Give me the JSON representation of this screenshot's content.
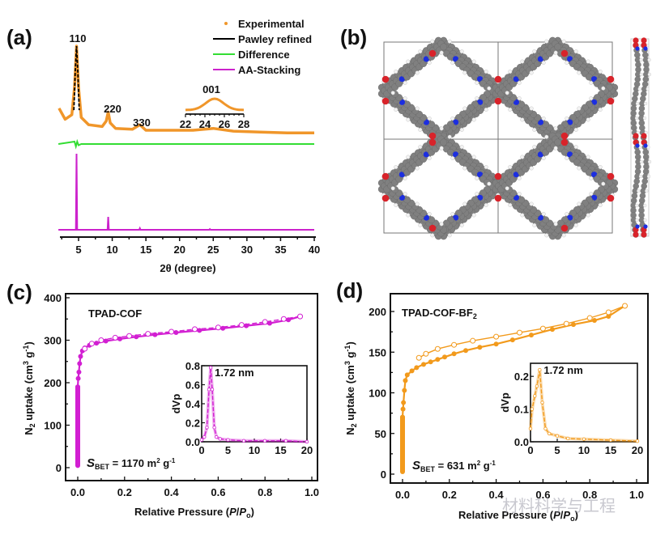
{
  "panels": {
    "a": {
      "label": "(a)"
    },
    "b": {
      "label": "(b)"
    },
    "c": {
      "label": "(c)"
    },
    "d": {
      "label": "(d)"
    }
  },
  "colors": {
    "experimental": "#f0962a",
    "pawley": "#000000",
    "difference": "#33dd33",
    "aa_stacking": "#cc22cc",
    "tpad_cof": "#d21fd2",
    "tpad_cof_bf2": "#f29a1c",
    "carbon": "#808080",
    "nitrogen": "#1c2ee0",
    "oxygen": "#d8232a",
    "hydrogen": "#f2f2f2"
  },
  "chart_data": [
    {
      "id": "a",
      "type": "line",
      "title": "",
      "xlabel": "2θ (degree)",
      "ylabel": "",
      "xlim": [
        2,
        40
      ],
      "xticks": [
        5,
        10,
        15,
        20,
        25,
        30,
        35,
        40
      ],
      "legend": {
        "placement": "top-right",
        "entries": [
          {
            "name": "Experimental",
            "style": "dot"
          },
          {
            "name": "Pawley refined",
            "style": "line"
          },
          {
            "name": "Difference",
            "style": "line"
          },
          {
            "name": "AA-Stacking",
            "style": "line"
          }
        ]
      },
      "peak_annotations": [
        {
          "label": "110",
          "x": 4.7
        },
        {
          "label": "220",
          "x": 9.4
        },
        {
          "label": "330",
          "x": 14.1
        },
        {
          "label": "001",
          "x": 25.0
        }
      ],
      "inset": {
        "xlim": [
          22,
          28
        ],
        "xticks": [
          22,
          24,
          26,
          28
        ],
        "peak_center": 25.0
      },
      "series": [
        {
          "name": "Experimental",
          "x": [
            2.1,
            3.0,
            4.0,
            4.4,
            4.7,
            5.0,
            5.4,
            6.5,
            8.5,
            9.1,
            9.4,
            9.7,
            10.5,
            13.0,
            14.1,
            15.0,
            18,
            22,
            25,
            28,
            32,
            36,
            40
          ],
          "values": [
            0.32,
            0.2,
            0.25,
            0.55,
            1.0,
            0.55,
            0.22,
            0.14,
            0.12,
            0.18,
            0.28,
            0.16,
            0.1,
            0.09,
            0.14,
            0.08,
            0.08,
            0.08,
            0.1,
            0.07,
            0.06,
            0.05,
            0.05
          ]
        },
        {
          "name": "Pawley refined",
          "x": [
            4.3,
            4.5,
            4.7,
            4.9,
            5.1
          ],
          "values": [
            0.3,
            0.7,
            1.0,
            0.7,
            0.3
          ]
        },
        {
          "name": "Difference",
          "x": [
            2,
            4.4,
            4.6,
            4.8,
            5.0,
            5.4,
            40
          ],
          "values": [
            0,
            0.02,
            -0.02,
            0.02,
            -0.01,
            0,
            0
          ]
        },
        {
          "name": "AA-Stacking",
          "x": [
            2,
            4.6,
            4.7,
            4.8,
            9.3,
            9.4,
            9.5,
            14.0,
            14.1,
            14.2,
            24.4,
            24.5,
            24.6,
            40
          ],
          "values": [
            0,
            0,
            1.0,
            0,
            0,
            0.17,
            0,
            0,
            0.02,
            0,
            0,
            0.01,
            0,
            0
          ]
        }
      ]
    },
    {
      "id": "c",
      "type": "line",
      "title": "TPAD-COF",
      "annotation": "S_BET = 1170 m² g⁻¹",
      "annotation_main": "S",
      "annotation_sub": "BET",
      "annotation_rest": " = 1170 m",
      "annotation_sup": "2",
      "annotation_tail": " g",
      "annotation_tail_sup": "-1",
      "xlabel": "Relative Pressure (P/P0)",
      "ylabel": "N2 uptake (cm3 g-1)",
      "xlim": [
        0,
        1.0
      ],
      "ylim": [
        0,
        400
      ],
      "xticks": [
        "0.0",
        "0.2",
        "0.4",
        "0.6",
        "0.8",
        "1.0"
      ],
      "yticks": [
        "0",
        "100",
        "200",
        "300",
        "400"
      ],
      "series": [
        {
          "name": "adsorption",
          "marker": "filled",
          "x": [
            0.0,
            0.0,
            0.0,
            0.002,
            0.005,
            0.008,
            0.012,
            0.02,
            0.03,
            0.05,
            0.08,
            0.12,
            0.18,
            0.25,
            0.33,
            0.42,
            0.52,
            0.62,
            0.72,
            0.82,
            0.9,
            0.95
          ],
          "values": [
            5,
            100,
            190,
            210,
            225,
            245,
            262,
            275,
            282,
            288,
            293,
            298,
            303,
            308,
            313,
            318,
            323,
            328,
            334,
            340,
            348,
            356
          ]
        },
        {
          "name": "desorption",
          "marker": "open",
          "x": [
            0.95,
            0.88,
            0.8,
            0.7,
            0.6,
            0.5,
            0.4,
            0.3,
            0.22,
            0.16,
            0.1,
            0.06,
            0.03
          ],
          "values": [
            356,
            350,
            343,
            336,
            330,
            326,
            320,
            315,
            310,
            306,
            300,
            292,
            280
          ]
        }
      ],
      "inset": {
        "title": "1.72 nm",
        "ylabel": "dVp",
        "xlim": [
          0,
          20
        ],
        "ylim": [
          0,
          0.8
        ],
        "xticks": [
          "0",
          "5",
          "10",
          "15",
          "20"
        ],
        "yticks": [
          "0.0",
          "0.2",
          "0.4",
          "0.6",
          "0.8"
        ],
        "x": [
          0,
          0.5,
          1.0,
          1.4,
          1.72,
          2.0,
          2.4,
          2.8,
          3.5,
          5,
          8,
          12,
          16,
          20
        ],
        "values": [
          0.02,
          0.05,
          0.15,
          0.55,
          0.78,
          0.55,
          0.15,
          0.05,
          0.03,
          0.02,
          0.01,
          0.01,
          0.01,
          0.0
        ]
      }
    },
    {
      "id": "d",
      "type": "line",
      "title": "TPAD-COF-BF2",
      "annotation": "S_BET = 631 m² g⁻¹",
      "annotation_main": "S",
      "annotation_sub": "BET",
      "annotation_rest": " = 631 m",
      "annotation_sup": "2",
      "annotation_tail": " g",
      "annotation_tail_sup": "-1",
      "xlabel": "Relative Pressure (P/P0)",
      "ylabel": "N2 uptake (cm3 g-1)",
      "xlim": [
        0,
        1.0
      ],
      "ylim": [
        0,
        200
      ],
      "xticks": [
        "0.0",
        "0.2",
        "0.4",
        "0.6",
        "0.8",
        "1.0"
      ],
      "yticks": [
        "0",
        "50",
        "100",
        "150",
        "200"
      ],
      "series": [
        {
          "name": "adsorption",
          "marker": "filled",
          "x": [
            0.0,
            0.0,
            0.0,
            0.002,
            0.004,
            0.008,
            0.012,
            0.02,
            0.04,
            0.06,
            0.09,
            0.12,
            0.15,
            0.18,
            0.22,
            0.27,
            0.33,
            0.4,
            0.47,
            0.55,
            0.64,
            0.73,
            0.82,
            0.88,
            0.95
          ],
          "values": [
            3,
            40,
            70,
            80,
            88,
            103,
            115,
            122,
            127,
            131,
            135,
            138,
            141,
            144,
            148,
            152,
            156,
            160,
            165,
            171,
            178,
            184,
            189,
            194,
            207
          ]
        },
        {
          "name": "desorption",
          "marker": "open",
          "x": [
            0.95,
            0.88,
            0.8,
            0.7,
            0.6,
            0.5,
            0.4,
            0.3,
            0.22,
            0.15,
            0.1,
            0.07
          ],
          "values": [
            207,
            199,
            192,
            185,
            179,
            174,
            169,
            164,
            159,
            154,
            148,
            143
          ]
        }
      ],
      "inset": {
        "title": "1.72 nm",
        "ylabel": "dVp",
        "xlim": [
          0,
          20
        ],
        "ylim": [
          0,
          0.24
        ],
        "xticks": [
          "0",
          "5",
          "10",
          "15",
          "20"
        ],
        "yticks": [
          "0.0",
          "0.1",
          "0.2"
        ],
        "x": [
          0,
          0.3,
          0.8,
          1.2,
          1.72,
          2.2,
          2.8,
          3.5,
          5,
          7,
          10,
          15,
          20
        ],
        "values": [
          0.04,
          0.1,
          0.14,
          0.17,
          0.22,
          0.12,
          0.04,
          0.025,
          0.018,
          0.01,
          0.008,
          0.005,
          0.002
        ]
      }
    }
  ],
  "structure_b": {
    "description": "COF crystal structure, top view 2x2 unit cells and side view",
    "atom_types": [
      "carbon",
      "nitrogen",
      "oxygen",
      "hydrogen"
    ]
  },
  "watermark": "材料科学与工程"
}
